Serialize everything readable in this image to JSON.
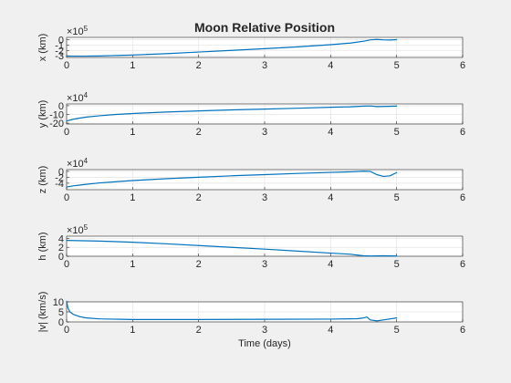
{
  "figure": {
    "background": "#f0f0f0",
    "line_color": "#0072bd"
  },
  "chart_data": [
    {
      "type": "line",
      "title": "Moon Relative Position",
      "ylabel": "x (km)",
      "xlabel": "",
      "multiplier": "10",
      "exponent": "5",
      "xlim": [
        0,
        6
      ],
      "ylim": [
        -3.3,
        0.4
      ],
      "xticks": [
        0,
        1,
        2,
        3,
        4,
        5,
        6
      ],
      "yticks": [
        -3,
        -2,
        -1,
        0
      ],
      "grid": true,
      "series": [
        {
          "x": [
            0,
            0.25,
            0.5,
            1,
            1.5,
            2,
            2.5,
            3,
            3.5,
            4,
            4.3,
            4.5,
            4.6,
            4.7,
            4.8,
            4.9,
            5
          ],
          "values": [
            -3.05,
            -3.06,
            -3.03,
            -2.85,
            -2.6,
            -2.3,
            -2.0,
            -1.68,
            -1.35,
            -0.95,
            -0.65,
            -0.3,
            -0.05,
            0.02,
            -0.05,
            -0.08,
            -0.02
          ]
        }
      ]
    },
    {
      "type": "line",
      "title": "",
      "ylabel": "y (km)",
      "xlabel": "",
      "multiplier": "10",
      "exponent": "4",
      "xlim": [
        0,
        6
      ],
      "ylim": [
        -21,
        2
      ],
      "xticks": [
        0,
        1,
        2,
        3,
        4,
        5,
        6
      ],
      "yticks": [
        -20,
        -10,
        0
      ],
      "grid": true,
      "series": [
        {
          "x": [
            0,
            0.1,
            0.2,
            0.3,
            0.5,
            0.75,
            1,
            1.5,
            2,
            2.5,
            3,
            3.5,
            4,
            4.3,
            4.5,
            4.6,
            4.7,
            4.8,
            5
          ],
          "values": [
            -17.5,
            -15.5,
            -14.2,
            -13.0,
            -11.5,
            -10.0,
            -9.0,
            -7.3,
            -6.0,
            -4.8,
            -3.9,
            -2.9,
            -1.8,
            -1.3,
            -0.5,
            -0.3,
            -1.0,
            -0.9,
            -0.5
          ]
        }
      ]
    },
    {
      "type": "line",
      "title": "",
      "ylabel": "z (km)",
      "xlabel": "",
      "multiplier": "10",
      "exponent": "4",
      "xlim": [
        0,
        6
      ],
      "ylim": [
        -6.2,
        0.6
      ],
      "xticks": [
        0,
        1,
        2,
        3,
        4,
        5,
        6
      ],
      "yticks": [
        -4,
        -2,
        0
      ],
      "grid": true,
      "series": [
        {
          "x": [
            0,
            0.1,
            0.25,
            0.5,
            1,
            1.5,
            2,
            2.5,
            3,
            3.5,
            4,
            4.3,
            4.5,
            4.6,
            4.7,
            4.8,
            4.9,
            5
          ],
          "values": [
            -5.3,
            -4.9,
            -4.5,
            -3.9,
            -3.1,
            -2.5,
            -2.0,
            -1.5,
            -1.1,
            -0.7,
            -0.35,
            -0.15,
            0.05,
            0.0,
            -1.1,
            -1.7,
            -1.5,
            -0.4
          ]
        }
      ]
    },
    {
      "type": "line",
      "title": "",
      "ylabel": "h (km)",
      "xlabel": "",
      "multiplier": "10",
      "exponent": "5",
      "xlim": [
        0,
        6
      ],
      "ylim": [
        0,
        4.5
      ],
      "xticks": [
        0,
        1,
        2,
        3,
        4,
        5,
        6
      ],
      "yticks": [
        0,
        2,
        4
      ],
      "grid": true,
      "series": [
        {
          "x": [
            0,
            0.5,
            1,
            1.5,
            2,
            2.5,
            3,
            3.5,
            4,
            4.3,
            4.5,
            4.6,
            4.8,
            5
          ],
          "values": [
            3.55,
            3.4,
            3.15,
            2.8,
            2.4,
            2.0,
            1.6,
            1.15,
            0.7,
            0.45,
            0.1,
            0.05,
            0.1,
            0.05
          ]
        }
      ]
    },
    {
      "type": "line",
      "title": "",
      "ylabel": "|v| (km/s)",
      "xlabel": "Time (days)",
      "multiplier": "",
      "exponent": "",
      "xlim": [
        0,
        6
      ],
      "ylim": [
        0,
        10
      ],
      "xticks": [
        0,
        1,
        2,
        3,
        4,
        5,
        6
      ],
      "yticks": [
        0,
        5,
        10
      ],
      "grid": true,
      "series": [
        {
          "x": [
            0,
            0.02,
            0.05,
            0.1,
            0.2,
            0.3,
            0.5,
            1,
            2,
            3,
            4,
            4.4,
            4.5,
            4.55,
            4.6,
            4.7,
            4.8,
            5
          ],
          "values": [
            10.3,
            7.0,
            5.0,
            3.8,
            2.6,
            2.0,
            1.5,
            1.2,
            1.2,
            1.3,
            1.4,
            1.6,
            2.0,
            2.4,
            1.0,
            0.5,
            1.0,
            2.0
          ]
        }
      ]
    }
  ]
}
